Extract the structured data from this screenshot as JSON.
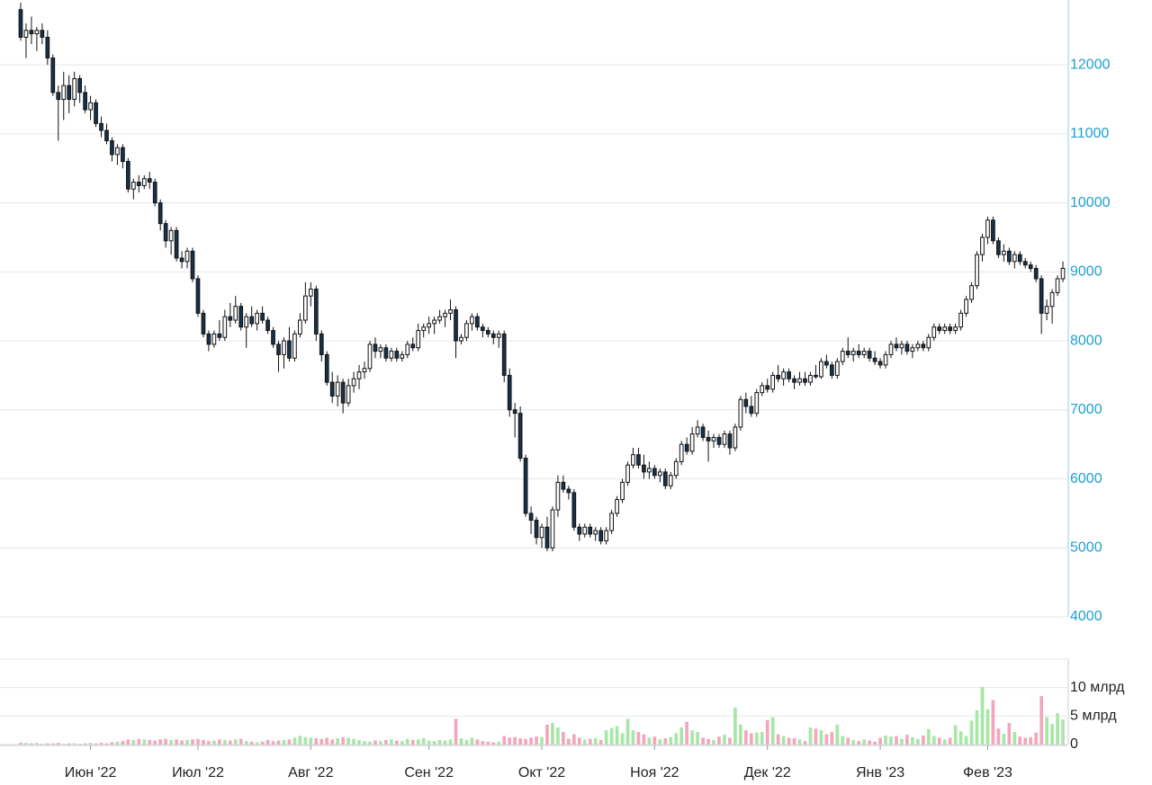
{
  "chart_data": {
    "type": "candlestick",
    "up_color": "#ffffff",
    "down_color": "#17324a",
    "outline_color": "#111111",
    "volume_up_color": "#a8e6a8",
    "volume_down_color": "#f4a6bd",
    "axis_color": "#1e9fd1",
    "grid": true,
    "xlim": [
      0,
      195
    ],
    "xticks": [
      {
        "value": 13,
        "label": "Июн '22"
      },
      {
        "value": 33,
        "label": "Июл '22"
      },
      {
        "value": 54,
        "label": "Авг '22"
      },
      {
        "value": 76,
        "label": "Сен '22"
      },
      {
        "value": 97,
        "label": "Окт '22"
      },
      {
        "value": 118,
        "label": "Ноя '22"
      },
      {
        "value": 139,
        "label": "Дек '22"
      },
      {
        "value": 160,
        "label": "Янв '23"
      },
      {
        "value": 180,
        "label": "Фев '23"
      }
    ],
    "ylim": [
      4000,
      12940
    ],
    "yticks": [
      4000,
      5000,
      6000,
      7000,
      8000,
      9000,
      10000,
      11000,
      12000
    ],
    "y2lim": [
      0,
      15
    ],
    "y2ticks": [
      0,
      {
        "value": 5,
        "label": "5 млрд"
      },
      {
        "value": 10,
        "label": "10 млрд"
      }
    ],
    "candles": [
      [
        12800,
        12900,
        12350,
        12400
      ],
      [
        12400,
        12600,
        12100,
        12500
      ],
      [
        12500,
        12700,
        12300,
        12450
      ],
      [
        12450,
        12550,
        12200,
        12500
      ],
      [
        12500,
        12600,
        12300,
        12400
      ],
      [
        12400,
        12500,
        12000,
        12100
      ],
      [
        12100,
        12150,
        11550,
        11600
      ],
      [
        11600,
        11700,
        10900,
        11500
      ],
      [
        11500,
        11900,
        11200,
        11700
      ],
      [
        11700,
        11850,
        11300,
        11500
      ],
      [
        11500,
        11900,
        11400,
        11800
      ],
      [
        11800,
        11850,
        11450,
        11600
      ],
      [
        11600,
        11700,
        11300,
        11350
      ],
      [
        11350,
        11550,
        11200,
        11450
      ],
      [
        11450,
        11500,
        11100,
        11150
      ],
      [
        11150,
        11250,
        10950,
        11050
      ],
      [
        11050,
        11150,
        10850,
        10900
      ],
      [
        10900,
        10950,
        10600,
        10700
      ],
      [
        10700,
        10850,
        10550,
        10800
      ],
      [
        10800,
        10850,
        10500,
        10600
      ],
      [
        10600,
        10650,
        10150,
        10200
      ],
      [
        10200,
        10350,
        10050,
        10300
      ],
      [
        10300,
        10400,
        10150,
        10250
      ],
      [
        10250,
        10400,
        10200,
        10350
      ],
      [
        10350,
        10450,
        10200,
        10300
      ],
      [
        10300,
        10350,
        9950,
        10000
      ],
      [
        10000,
        10050,
        9600,
        9700
      ],
      [
        9700,
        9750,
        9350,
        9450
      ],
      [
        9450,
        9650,
        9250,
        9600
      ],
      [
        9600,
        9650,
        9150,
        9200
      ],
      [
        9200,
        9300,
        9050,
        9150
      ],
      [
        9150,
        9350,
        9050,
        9300
      ],
      [
        9300,
        9350,
        8850,
        8900
      ],
      [
        8900,
        8950,
        8350,
        8400
      ],
      [
        8400,
        8450,
        8050,
        8100
      ],
      [
        8100,
        8150,
        7850,
        7950
      ],
      [
        7950,
        8150,
        7900,
        8100
      ],
      [
        8100,
        8300,
        8000,
        8050
      ],
      [
        8050,
        8450,
        8000,
        8350
      ],
      [
        8350,
        8550,
        8200,
        8300
      ],
      [
        8300,
        8650,
        8250,
        8500
      ],
      [
        8500,
        8550,
        8150,
        8200
      ],
      [
        8200,
        8400,
        7900,
        8350
      ],
      [
        8350,
        8500,
        8200,
        8250
      ],
      [
        8250,
        8450,
        8150,
        8400
      ],
      [
        8400,
        8500,
        8250,
        8300
      ],
      [
        8300,
        8350,
        8100,
        8150
      ],
      [
        8150,
        8200,
        7900,
        7950
      ],
      [
        7950,
        8000,
        7550,
        7800
      ],
      [
        7800,
        8050,
        7600,
        8000
      ],
      [
        8000,
        8200,
        7700,
        7750
      ],
      [
        7750,
        8150,
        7700,
        8100
      ],
      [
        8100,
        8400,
        8050,
        8300
      ],
      [
        8300,
        8850,
        8250,
        8650
      ],
      [
        8650,
        8850,
        8500,
        8750
      ],
      [
        8750,
        8800,
        8000,
        8100
      ],
      [
        8100,
        8150,
        7700,
        7800
      ],
      [
        7800,
        7850,
        7350,
        7400
      ],
      [
        7400,
        7550,
        7100,
        7200
      ],
      [
        7200,
        7500,
        7050,
        7400
      ],
      [
        7400,
        7450,
        6950,
        7100
      ],
      [
        7100,
        7450,
        7050,
        7350
      ],
      [
        7350,
        7550,
        7250,
        7450
      ],
      [
        7450,
        7650,
        7300,
        7550
      ],
      [
        7550,
        7700,
        7450,
        7600
      ],
      [
        7600,
        8000,
        7550,
        7950
      ],
      [
        7950,
        8050,
        7750,
        7850
      ],
      [
        7850,
        7950,
        7750,
        7900
      ],
      [
        7900,
        7950,
        7700,
        7750
      ],
      [
        7750,
        7900,
        7700,
        7850
      ],
      [
        7850,
        7900,
        7700,
        7750
      ],
      [
        7750,
        7850,
        7700,
        7800
      ],
      [
        7800,
        8000,
        7750,
        7950
      ],
      [
        7950,
        8050,
        7850,
        7900
      ],
      [
        7900,
        8250,
        7850,
        8150
      ],
      [
        8150,
        8250,
        8050,
        8200
      ],
      [
        8200,
        8350,
        8100,
        8250
      ],
      [
        8250,
        8350,
        8100,
        8300
      ],
      [
        8300,
        8450,
        8250,
        8350
      ],
      [
        8350,
        8450,
        8200,
        8400
      ],
      [
        8400,
        8600,
        8300,
        8450
      ],
      [
        8450,
        8500,
        7750,
        8000
      ],
      [
        8000,
        8100,
        7950,
        8050
      ],
      [
        8050,
        8300,
        8000,
        8250
      ],
      [
        8250,
        8400,
        8150,
        8350
      ],
      [
        8350,
        8400,
        8150,
        8200
      ],
      [
        8200,
        8250,
        8050,
        8150
      ],
      [
        8150,
        8200,
        8050,
        8100
      ],
      [
        8100,
        8150,
        7950,
        8050
      ],
      [
        8050,
        8150,
        7900,
        8100
      ],
      [
        8100,
        8150,
        7400,
        7500
      ],
      [
        7500,
        7600,
        6900,
        7000
      ],
      [
        7000,
        7100,
        6600,
        6950
      ],
      [
        6950,
        7050,
        6250,
        6300
      ],
      [
        6300,
        6350,
        5450,
        5500
      ],
      [
        5500,
        5600,
        5200,
        5400
      ],
      [
        5400,
        5450,
        5050,
        5150
      ],
      [
        5150,
        5350,
        5000,
        5300
      ],
      [
        5300,
        5450,
        4950,
        5000
      ],
      [
        5000,
        5600,
        4950,
        5550
      ],
      [
        5550,
        6050,
        5450,
        5950
      ],
      [
        5950,
        6050,
        5800,
        5850
      ],
      [
        5850,
        5900,
        5700,
        5800
      ],
      [
        5800,
        5850,
        5250,
        5300
      ],
      [
        5300,
        5350,
        5100,
        5200
      ],
      [
        5200,
        5350,
        5150,
        5300
      ],
      [
        5300,
        5350,
        5150,
        5200
      ],
      [
        5200,
        5300,
        5100,
        5250
      ],
      [
        5250,
        5300,
        5050,
        5100
      ],
      [
        5100,
        5300,
        5050,
        5250
      ],
      [
        5250,
        5550,
        5200,
        5500
      ],
      [
        5500,
        5750,
        5450,
        5700
      ],
      [
        5700,
        6000,
        5650,
        5950
      ],
      [
        5950,
        6250,
        5900,
        6200
      ],
      [
        6200,
        6450,
        6150,
        6350
      ],
      [
        6350,
        6450,
        6150,
        6200
      ],
      [
        6200,
        6350,
        6000,
        6100
      ],
      [
        6100,
        6250,
        6000,
        6150
      ],
      [
        6150,
        6200,
        6000,
        6050
      ],
      [
        6050,
        6150,
        5950,
        6100
      ],
      [
        6100,
        6150,
        5850,
        5900
      ],
      [
        5900,
        6100,
        5850,
        6050
      ],
      [
        6050,
        6300,
        6000,
        6250
      ],
      [
        6250,
        6550,
        6200,
        6500
      ],
      [
        6500,
        6600,
        6350,
        6400
      ],
      [
        6400,
        6750,
        6350,
        6650
      ],
      [
        6650,
        6850,
        6600,
        6750
      ],
      [
        6750,
        6800,
        6550,
        6600
      ],
      [
        6600,
        6700,
        6250,
        6550
      ],
      [
        6550,
        6650,
        6450,
        6600
      ],
      [
        6600,
        6650,
        6450,
        6500
      ],
      [
        6500,
        6700,
        6450,
        6650
      ],
      [
        6650,
        6700,
        6350,
        6450
      ],
      [
        6450,
        6800,
        6400,
        6750
      ],
      [
        6750,
        7200,
        6700,
        7150
      ],
      [
        7150,
        7250,
        6950,
        7050
      ],
      [
        7050,
        7200,
        6900,
        6950
      ],
      [
        6950,
        7300,
        6900,
        7250
      ],
      [
        7250,
        7400,
        7200,
        7350
      ],
      [
        7350,
        7450,
        7250,
        7300
      ],
      [
        7300,
        7550,
        7250,
        7500
      ],
      [
        7500,
        7650,
        7400,
        7450
      ],
      [
        7450,
        7600,
        7350,
        7550
      ],
      [
        7550,
        7600,
        7400,
        7450
      ],
      [
        7450,
        7500,
        7300,
        7400
      ],
      [
        7400,
        7550,
        7350,
        7450
      ],
      [
        7450,
        7550,
        7350,
        7400
      ],
      [
        7400,
        7550,
        7350,
        7500
      ],
      [
        7500,
        7650,
        7450,
        7480
      ],
      [
        7480,
        7750,
        7450,
        7700
      ],
      [
        7700,
        7800,
        7600,
        7650
      ],
      [
        7650,
        7700,
        7450,
        7500
      ],
      [
        7500,
        7750,
        7450,
        7700
      ],
      [
        7700,
        7900,
        7650,
        7850
      ],
      [
        7850,
        8050,
        7750,
        7800
      ],
      [
        7800,
        7900,
        7700,
        7850
      ],
      [
        7850,
        7950,
        7750,
        7800
      ],
      [
        7800,
        7900,
        7750,
        7850
      ],
      [
        7850,
        7900,
        7700,
        7750
      ],
      [
        7750,
        7850,
        7650,
        7700
      ],
      [
        7700,
        7750,
        7600,
        7650
      ],
      [
        7650,
        7850,
        7600,
        7800
      ],
      [
        7800,
        8000,
        7750,
        7950
      ],
      [
        7950,
        8050,
        7850,
        7900
      ],
      [
        7900,
        8000,
        7800,
        7950
      ],
      [
        7950,
        8000,
        7800,
        7850
      ],
      [
        7850,
        7950,
        7750,
        7900
      ],
      [
        7900,
        8000,
        7850,
        7950
      ],
      [
        7950,
        8000,
        7850,
        7900
      ],
      [
        7900,
        8100,
        7850,
        8050
      ],
      [
        8050,
        8250,
        8000,
        8200
      ],
      [
        8200,
        8250,
        8100,
        8150
      ],
      [
        8150,
        8250,
        8100,
        8200
      ],
      [
        8200,
        8250,
        8100,
        8150
      ],
      [
        8150,
        8250,
        8100,
        8200
      ],
      [
        8200,
        8450,
        8150,
        8400
      ],
      [
        8400,
        8650,
        8350,
        8600
      ],
      [
        8600,
        8850,
        8550,
        8800
      ],
      [
        8800,
        9300,
        8750,
        9250
      ],
      [
        9250,
        9550,
        9150,
        9500
      ],
      [
        9500,
        9800,
        9400,
        9750
      ],
      [
        9750,
        9800,
        9400,
        9450
      ],
      [
        9450,
        9500,
        9200,
        9250
      ],
      [
        9250,
        9400,
        9150,
        9300
      ],
      [
        9300,
        9350,
        9100,
        9150
      ],
      [
        9150,
        9300,
        9050,
        9250
      ],
      [
        9250,
        9300,
        9100,
        9150
      ],
      [
        9150,
        9200,
        9050,
        9100
      ],
      [
        9100,
        9150,
        9000,
        9050
      ],
      [
        9050,
        9100,
        8850,
        8900
      ],
      [
        8900,
        8950,
        8100,
        8400
      ],
      [
        8400,
        8600,
        8300,
        8500
      ],
      [
        8500,
        8750,
        8250,
        8700
      ],
      [
        8700,
        8950,
        8650,
        8900
      ],
      [
        8900,
        9150,
        8850,
        9050
      ]
    ],
    "volume": [
      0.3,
      0.3,
      0.2,
      0.3,
      0.1,
      0.2,
      0.2,
      0.3,
      0.1,
      0.2,
      0.2,
      0.1,
      0.2,
      0.3,
      0.2,
      0.3,
      0.2,
      0.4,
      0.5,
      0.6,
      0.9,
      0.8,
      1.0,
      0.9,
      0.8,
      0.7,
      0.9,
      1.0,
      0.8,
      0.9,
      0.7,
      0.8,
      0.9,
      1.0,
      0.8,
      0.6,
      0.7,
      0.9,
      0.8,
      0.7,
      0.9,
      1.0,
      0.6,
      0.5,
      0.4,
      0.5,
      0.8,
      0.6,
      0.7,
      0.8,
      0.9,
      1.2,
      1.5,
      1.3,
      1.2,
      1.1,
      1.0,
      1.2,
      0.9,
      1.1,
      1.3,
      1.2,
      1.0,
      0.8,
      0.6,
      0.5,
      0.7,
      0.6,
      0.8,
      0.9,
      0.7,
      0.6,
      1.0,
      0.8,
      0.9,
      1.1,
      0.7,
      0.6,
      0.8,
      0.7,
      0.9,
      4.5,
      1.1,
      0.8,
      1.2,
      0.9,
      0.6,
      0.5,
      0.4,
      0.5,
      1.5,
      1.2,
      1.3,
      1.1,
      1.0,
      1.2,
      1.4,
      1.3,
      3.5,
      3.8,
      3.0,
      2.2,
      1.0,
      1.8,
      1.2,
      0.9,
      1.0,
      1.1,
      0.8,
      2.5,
      2.9,
      3.2,
      2.0,
      4.5,
      2.5,
      2.2,
      1.8,
      1.2,
      1.4,
      0.9,
      1.1,
      1.3,
      2.0,
      3.0,
      4.0,
      2.5,
      2.2,
      1.2,
      1.0,
      0.8,
      1.4,
      1.7,
      1.2,
      6.5,
      3.5,
      2.5,
      2.0,
      2.1,
      2.2,
      4.3,
      4.8,
      1.8,
      1.5,
      1.2,
      1.1,
      0.9,
      0.6,
      3.0,
      2.8,
      2.5,
      1.8,
      2.2,
      3.5,
      1.5,
      1.2,
      0.8,
      0.6,
      0.9,
      0.7,
      0.5,
      1.2,
      1.6,
      1.4,
      1.5,
      1.0,
      1.7,
      1.3,
      1.0,
      1.6,
      2.7,
      1.5,
      1.2,
      0.9,
      1.2,
      3.4,
      2.3,
      1.5,
      4.2,
      6.0,
      10.1,
      6.2,
      7.8,
      2.8,
      1.9,
      3.8,
      2.2,
      1.4,
      1.2,
      1.3,
      2.1,
      8.5,
      4.8,
      3.6,
      5.5,
      4.4
    ]
  }
}
